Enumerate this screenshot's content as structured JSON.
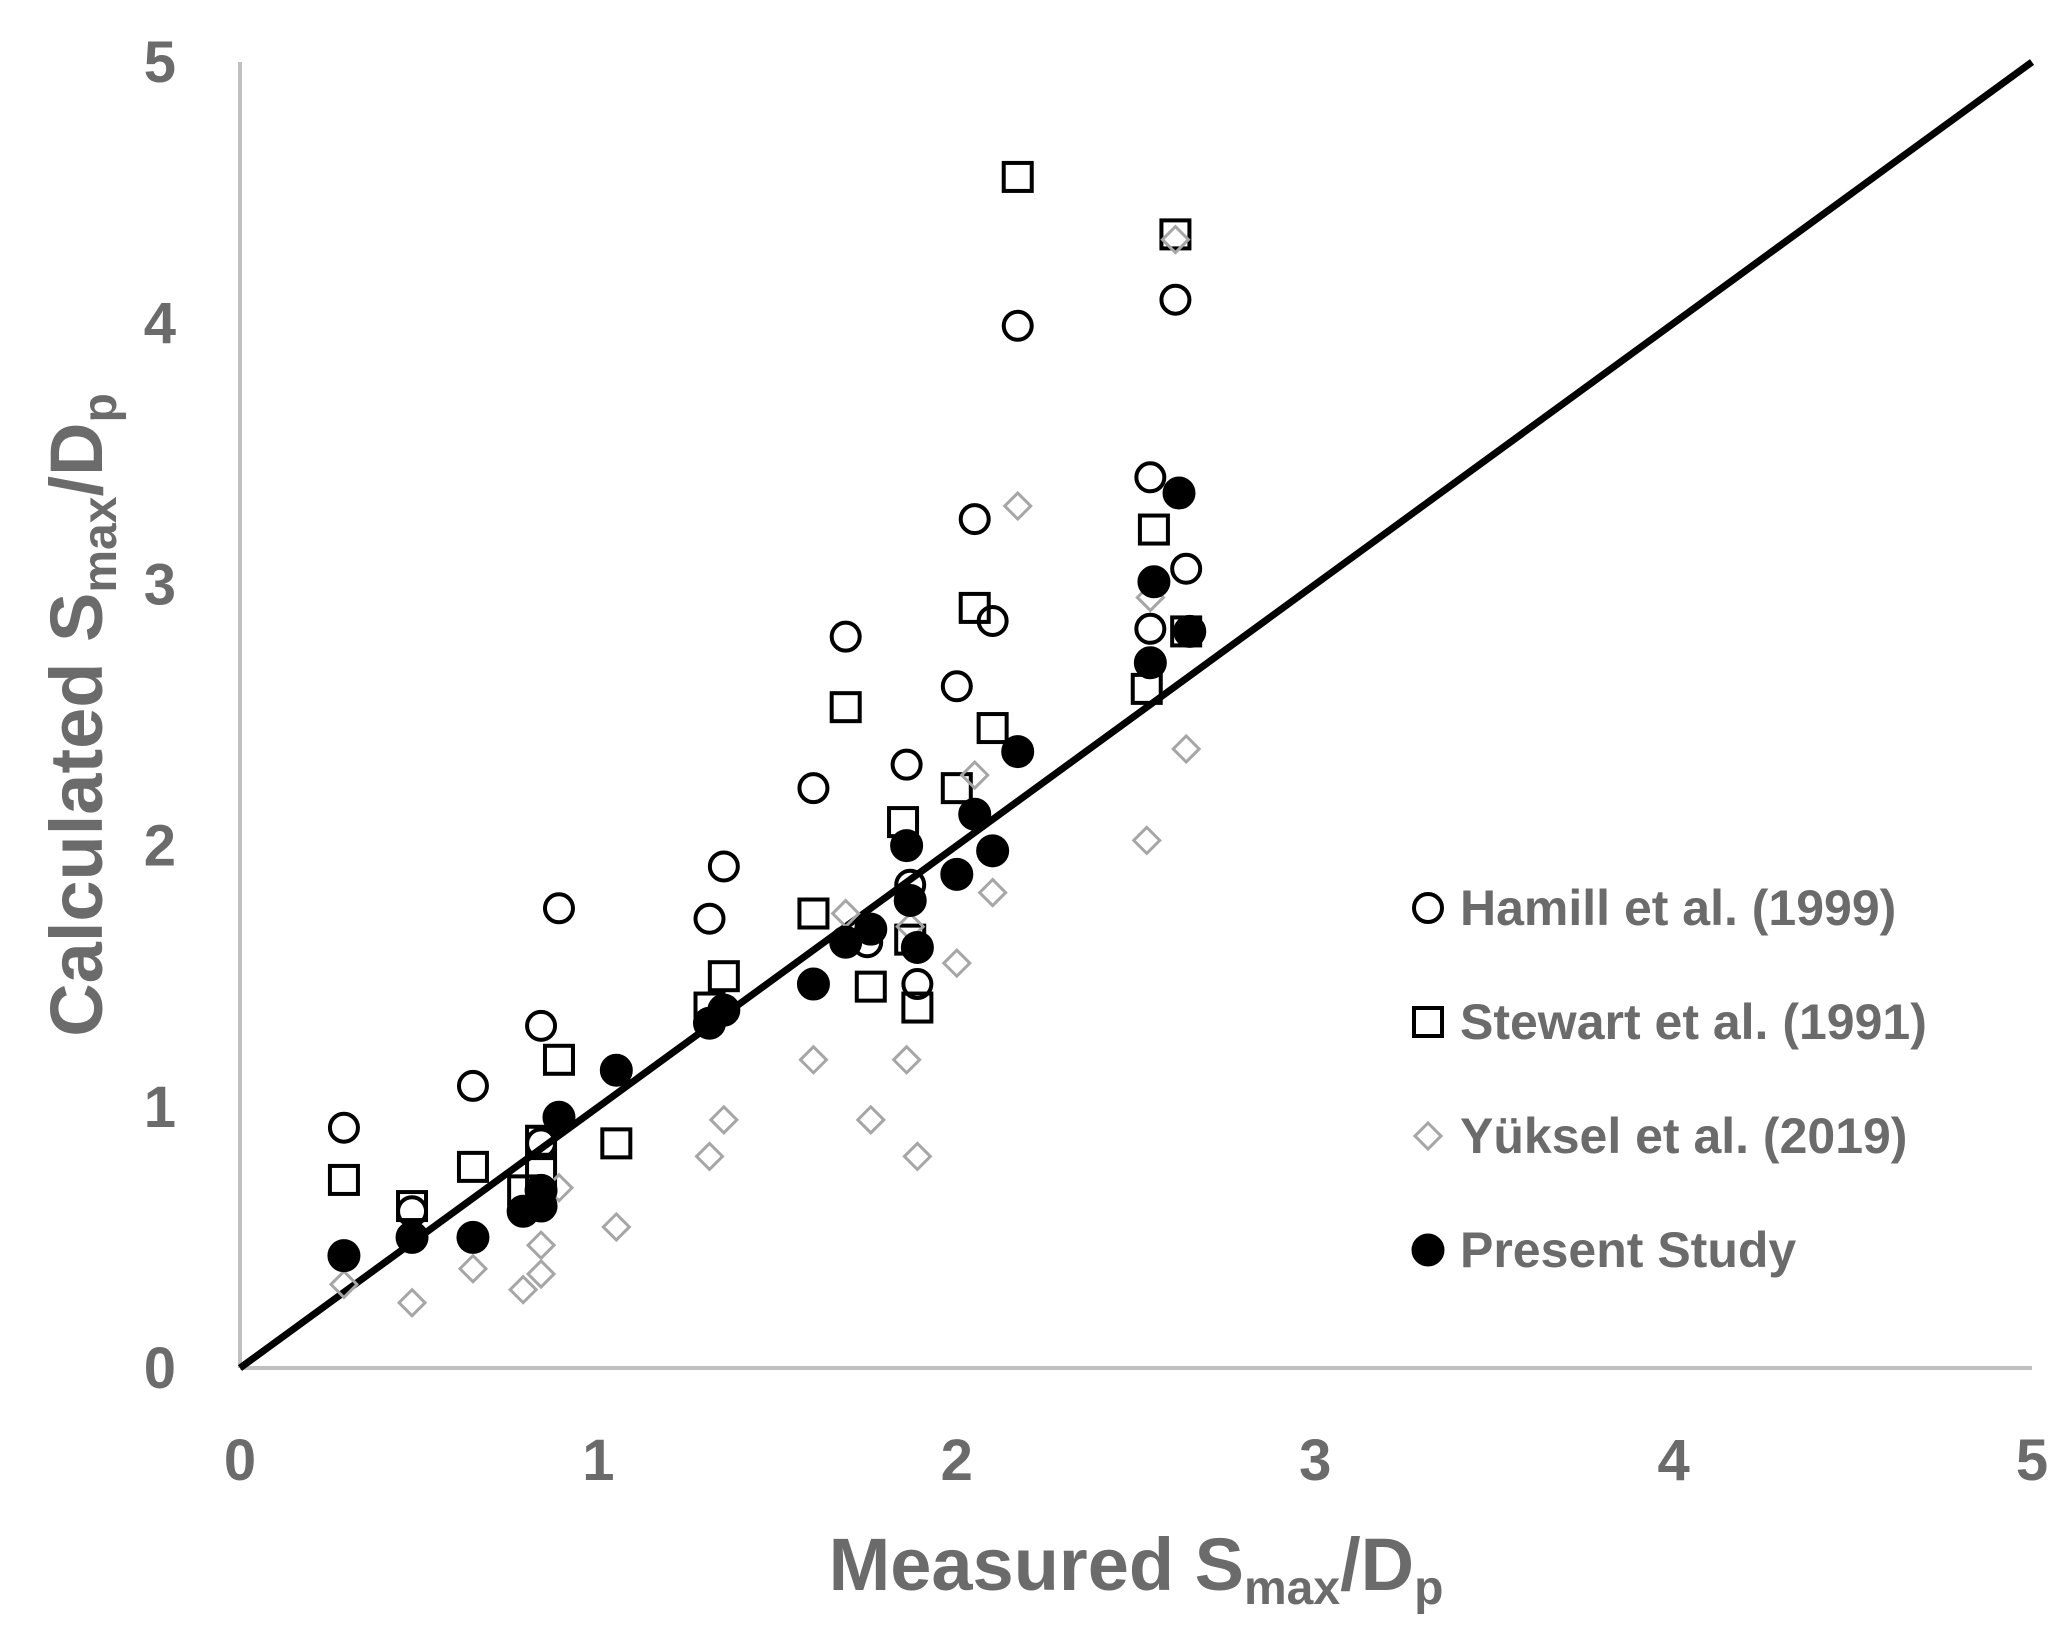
{
  "chart_data": {
    "type": "scatter",
    "title": "",
    "xlabel": {
      "main": "Measured S",
      "sub": "max",
      "mid": "/D",
      "sub2": "p"
    },
    "ylabel": {
      "main": "Calculated S",
      "sub": "max",
      "mid": "/D",
      "sub2": "p"
    },
    "xlim": [
      0,
      5
    ],
    "ylim": [
      0,
      5
    ],
    "xticks": [
      "0",
      "1",
      "2",
      "3",
      "4",
      "5"
    ],
    "yticks": [
      "0",
      "1",
      "2",
      "3",
      "4",
      "5"
    ],
    "grid": false,
    "legend_position": "right",
    "reference_line": {
      "name": "1:1 line",
      "x": [
        0,
        5
      ],
      "y": [
        0,
        5
      ],
      "color": "#000000"
    },
    "series": [
      {
        "name": "Hamill et al. (1999)",
        "marker": "circle-open",
        "color": "#000000",
        "points": [
          [
            0.29,
            0.92
          ],
          [
            0.48,
            0.6
          ],
          [
            0.65,
            1.08
          ],
          [
            0.84,
            1.31
          ],
          [
            0.84,
            0.86
          ],
          [
            0.89,
            1.76
          ],
          [
            1.31,
            1.72
          ],
          [
            1.35,
            1.92
          ],
          [
            1.6,
            2.22
          ],
          [
            1.69,
            2.8
          ],
          [
            1.75,
            1.63
          ],
          [
            1.86,
            2.31
          ],
          [
            1.87,
            1.85
          ],
          [
            1.89,
            1.47
          ],
          [
            2.0,
            2.61
          ],
          [
            2.05,
            3.25
          ],
          [
            2.1,
            2.86
          ],
          [
            2.17,
            3.99
          ],
          [
            2.54,
            3.41
          ],
          [
            2.54,
            2.83
          ],
          [
            2.61,
            4.09
          ],
          [
            2.64,
            3.06
          ]
        ]
      },
      {
        "name": "Stewart et al. (1991)",
        "marker": "square-open",
        "color": "#000000",
        "points": [
          [
            0.29,
            0.72
          ],
          [
            0.48,
            0.62
          ],
          [
            0.65,
            0.77
          ],
          [
            0.79,
            0.68
          ],
          [
            0.84,
            0.87
          ],
          [
            0.84,
            0.75
          ],
          [
            0.89,
            1.18
          ],
          [
            1.05,
            0.86
          ],
          [
            1.31,
            1.38
          ],
          [
            1.35,
            1.5
          ],
          [
            1.6,
            1.74
          ],
          [
            1.69,
            2.53
          ],
          [
            1.76,
            1.46
          ],
          [
            1.85,
            2.09
          ],
          [
            1.87,
            1.64
          ],
          [
            1.89,
            1.38
          ],
          [
            2.0,
            2.22
          ],
          [
            2.05,
            2.91
          ],
          [
            2.1,
            2.45
          ],
          [
            2.17,
            4.56
          ],
          [
            2.53,
            2.6
          ],
          [
            2.55,
            3.21
          ],
          [
            2.61,
            4.34
          ],
          [
            2.64,
            2.82
          ]
        ]
      },
      {
        "name": "Yüksel et al. (2019)",
        "marker": "diamond-open",
        "color": "#a6a6a6",
        "points": [
          [
            0.29,
            0.32
          ],
          [
            0.48,
            0.25
          ],
          [
            0.65,
            0.38
          ],
          [
            0.79,
            0.3
          ],
          [
            0.84,
            0.36
          ],
          [
            0.84,
            0.47
          ],
          [
            0.89,
            0.69
          ],
          [
            1.05,
            0.54
          ],
          [
            1.31,
            0.81
          ],
          [
            1.35,
            0.95
          ],
          [
            1.6,
            1.18
          ],
          [
            1.69,
            1.74
          ],
          [
            1.76,
            0.95
          ],
          [
            1.86,
            1.18
          ],
          [
            1.87,
            1.69
          ],
          [
            1.89,
            0.81
          ],
          [
            2.0,
            1.55
          ],
          [
            2.05,
            2.27
          ],
          [
            2.1,
            1.82
          ],
          [
            2.17,
            3.3
          ],
          [
            2.53,
            2.02
          ],
          [
            2.54,
            2.95
          ],
          [
            2.61,
            4.32
          ],
          [
            2.64,
            2.37
          ]
        ]
      },
      {
        "name": "Present Study",
        "marker": "circle-filled",
        "color": "#000000",
        "points": [
          [
            0.29,
            0.43
          ],
          [
            0.48,
            0.5
          ],
          [
            0.65,
            0.5
          ],
          [
            0.79,
            0.6
          ],
          [
            0.84,
            0.62
          ],
          [
            0.84,
            0.68
          ],
          [
            0.89,
            0.96
          ],
          [
            1.05,
            1.14
          ],
          [
            1.31,
            1.32
          ],
          [
            1.35,
            1.37
          ],
          [
            1.6,
            1.47
          ],
          [
            1.69,
            1.63
          ],
          [
            1.76,
            1.68
          ],
          [
            1.86,
            2.0
          ],
          [
            1.87,
            1.79
          ],
          [
            1.89,
            1.61
          ],
          [
            2.0,
            1.89
          ],
          [
            2.05,
            2.12
          ],
          [
            2.1,
            1.98
          ],
          [
            2.17,
            2.36
          ],
          [
            2.54,
            2.7
          ],
          [
            2.55,
            3.01
          ],
          [
            2.62,
            3.35
          ],
          [
            2.65,
            2.82
          ]
        ]
      }
    ]
  }
}
